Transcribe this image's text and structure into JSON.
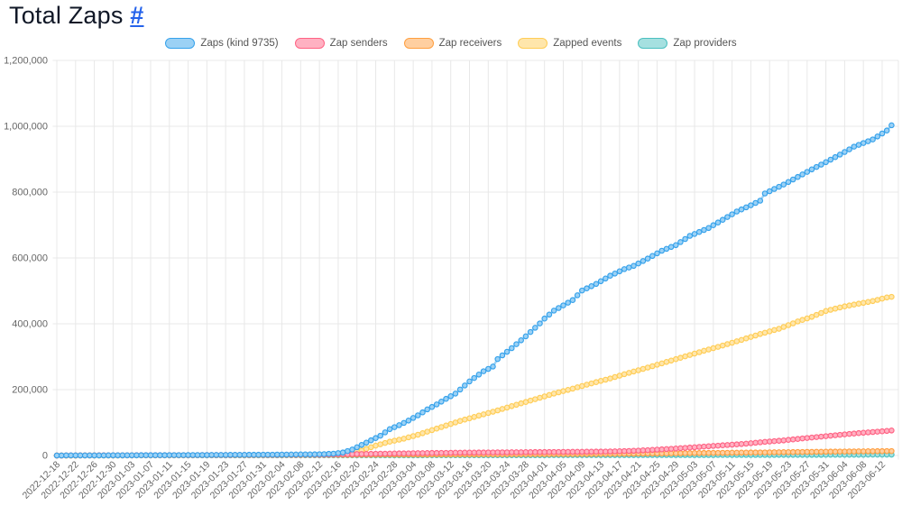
{
  "page": {
    "title": "Total Zaps",
    "title_link": "#"
  },
  "chart_data": {
    "type": "line",
    "title": "Total Zaps",
    "legend_position": "top",
    "grid": true,
    "point_style": "circle-daily",
    "x_daily_range": {
      "start": "2022-12-18",
      "end": "2023-06-14",
      "points_per_series": 179
    },
    "x_tick_labels": [
      "2022-12-18",
      "2022-12-22",
      "2022-12-26",
      "2022-12-30",
      "2023-01-03",
      "2023-01-07",
      "2023-01-11",
      "2023-01-15",
      "2023-01-19",
      "2023-01-23",
      "2023-01-27",
      "2023-01-31",
      "2023-02-04",
      "2023-02-08",
      "2023-02-12",
      "2023-02-16",
      "2023-02-20",
      "2023-02-24",
      "2023-02-28",
      "2023-03-04",
      "2023-03-08",
      "2023-03-12",
      "2023-03-16",
      "2023-03-20",
      "2023-03-24",
      "2023-03-28",
      "2023-04-01",
      "2023-04-05",
      "2023-04-09",
      "2023-04-13",
      "2023-04-17",
      "2023-04-21",
      "2023-04-25",
      "2023-04-29",
      "2023-05-03",
      "2023-05-07",
      "2023-05-11",
      "2023-05-15",
      "2023-05-19",
      "2023-05-23",
      "2023-05-27",
      "2023-05-31",
      "2023-06-04",
      "2023-06-08",
      "2023-06-12"
    ],
    "ylim": [
      0,
      1200000
    ],
    "y_tick_labels": [
      "0",
      "200,000",
      "400,000",
      "600,000",
      "800,000",
      "1,000,000",
      "1,200,000"
    ],
    "series": [
      {
        "name": "Zaps (kind 9735)",
        "color": "#36A2EB",
        "fill_color": "#9BD1F5",
        "points_day_value": [
          [
            0,
            100
          ],
          [
            8,
            300
          ],
          [
            16,
            600
          ],
          [
            24,
            1000
          ],
          [
            32,
            1500
          ],
          [
            40,
            2000
          ],
          [
            48,
            2700
          ],
          [
            54,
            3400
          ],
          [
            57,
            4200
          ],
          [
            59,
            5500
          ],
          [
            61,
            9000
          ],
          [
            63,
            18000
          ],
          [
            65,
            32000
          ],
          [
            67,
            46000
          ],
          [
            69,
            60000
          ],
          [
            71,
            80000
          ],
          [
            73,
            92000
          ],
          [
            75,
            106000
          ],
          [
            77,
            122000
          ],
          [
            79,
            140000
          ],
          [
            81,
            155000
          ],
          [
            83,
            172000
          ],
          [
            85,
            188000
          ],
          [
            88,
            225000
          ],
          [
            91,
            256000
          ],
          [
            93,
            270000
          ],
          [
            94,
            293000
          ],
          [
            97,
            326000
          ],
          [
            100,
            362000
          ],
          [
            103,
            401000
          ],
          [
            104,
            416000
          ],
          [
            106,
            440000
          ],
          [
            108,
            456000
          ],
          [
            110,
            472000
          ],
          [
            112,
            501000
          ],
          [
            115,
            521000
          ],
          [
            118,
            546000
          ],
          [
            121,
            566000
          ],
          [
            123,
            576000
          ],
          [
            126,
            598000
          ],
          [
            129,
            622000
          ],
          [
            132,
            639000
          ],
          [
            135,
            667000
          ],
          [
            139,
            691000
          ],
          [
            142,
            716000
          ],
          [
            145,
            741000
          ],
          [
            148,
            760000
          ],
          [
            150,
            774000
          ],
          [
            151,
            796000
          ],
          [
            155,
            823000
          ],
          [
            158,
            846000
          ],
          [
            161,
            869000
          ],
          [
            164,
            891000
          ],
          [
            167,
            914000
          ],
          [
            170,
            938000
          ],
          [
            174,
            960000
          ],
          [
            177,
            987000
          ],
          [
            178,
            1003000
          ]
        ]
      },
      {
        "name": "Zap senders",
        "color": "#FF6384",
        "fill_color": "#FFB1C2",
        "points_day_value": [
          [
            0,
            100
          ],
          [
            20,
            800
          ],
          [
            40,
            1600
          ],
          [
            56,
            2600
          ],
          [
            60,
            3500
          ],
          [
            65,
            4500
          ],
          [
            70,
            5600
          ],
          [
            75,
            6600
          ],
          [
            80,
            7600
          ],
          [
            85,
            8400
          ],
          [
            90,
            9000
          ],
          [
            95,
            9600
          ],
          [
            100,
            10100
          ],
          [
            105,
            10600
          ],
          [
            110,
            11100
          ],
          [
            115,
            11700
          ],
          [
            119,
            12500
          ],
          [
            123,
            14200
          ],
          [
            127,
            17000
          ],
          [
            131,
            20200
          ],
          [
            135,
            24000
          ],
          [
            139,
            28000
          ],
          [
            143,
            31800
          ],
          [
            147,
            35800
          ],
          [
            151,
            41500
          ],
          [
            155,
            45800
          ],
          [
            158,
            50200
          ],
          [
            161,
            54600
          ],
          [
            164,
            58600
          ],
          [
            167,
            62700
          ],
          [
            170,
            66700
          ],
          [
            174,
            71200
          ],
          [
            178,
            75800
          ]
        ]
      },
      {
        "name": "Zap receivers",
        "color": "#FF9F40",
        "fill_color": "#FFCFA0",
        "points_day_value": [
          [
            0,
            50
          ],
          [
            40,
            900
          ],
          [
            60,
            1900
          ],
          [
            80,
            2900
          ],
          [
            100,
            3900
          ],
          [
            119,
            5000
          ],
          [
            130,
            6400
          ],
          [
            140,
            7900
          ],
          [
            151,
            9400
          ],
          [
            160,
            10900
          ],
          [
            170,
            12400
          ],
          [
            178,
            13500
          ]
        ]
      },
      {
        "name": "Zapped events",
        "color": "#FFCD56",
        "fill_color": "#FFE6AB",
        "points_day_value": [
          [
            0,
            0
          ],
          [
            40,
            1200
          ],
          [
            55,
            2500
          ],
          [
            60,
            5000
          ],
          [
            63,
            10000
          ],
          [
            65,
            15000
          ],
          [
            68,
            30000
          ],
          [
            71,
            42000
          ],
          [
            74,
            51000
          ],
          [
            77,
            63000
          ],
          [
            80,
            77000
          ],
          [
            83,
            91000
          ],
          [
            86,
            105000
          ],
          [
            90,
            121000
          ],
          [
            94,
            137000
          ],
          [
            98,
            154000
          ],
          [
            102,
            171000
          ],
          [
            106,
            188000
          ],
          [
            110,
            203000
          ],
          [
            114,
            219000
          ],
          [
            118,
            234000
          ],
          [
            122,
            251000
          ],
          [
            126,
            267000
          ],
          [
            130,
            284000
          ],
          [
            134,
            301000
          ],
          [
            138,
            318000
          ],
          [
            142,
            334000
          ],
          [
            146,
            351000
          ],
          [
            150,
            369000
          ],
          [
            154,
            385000
          ],
          [
            158,
            407000
          ],
          [
            161,
            421000
          ],
          [
            164,
            439000
          ],
          [
            168,
            453000
          ],
          [
            171,
            461000
          ],
          [
            174,
            469000
          ],
          [
            177,
            480000
          ],
          [
            178,
            482000
          ]
        ]
      },
      {
        "name": "Zap providers",
        "color": "#4BC0C0",
        "fill_color": "#A5E0E0",
        "points_day_value": [
          [
            0,
            20
          ],
          [
            60,
            500
          ],
          [
            100,
            900
          ],
          [
            130,
            1300
          ],
          [
            151,
            1700
          ],
          [
            165,
            2100
          ],
          [
            178,
            2500
          ]
        ]
      }
    ]
  }
}
